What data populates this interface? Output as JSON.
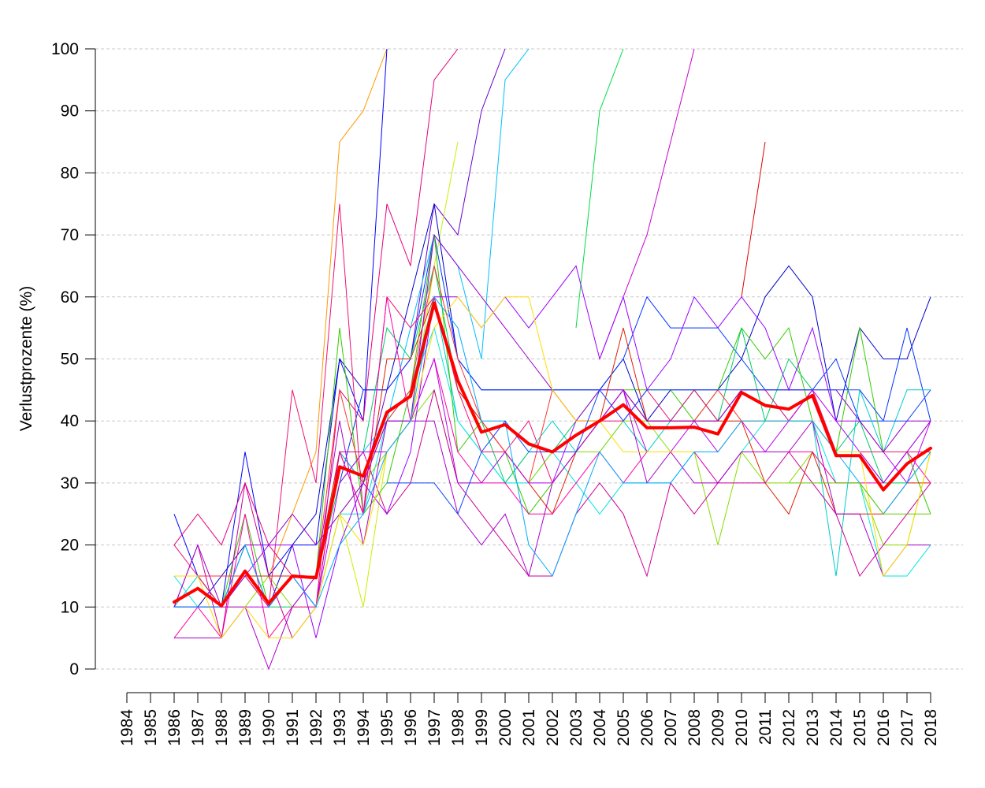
{
  "chart_data": {
    "type": "line",
    "title": "",
    "xlabel": "",
    "ylabel": "Verlustprozente (%)",
    "ylim": [
      0,
      100
    ],
    "yticks": [
      0,
      10,
      20,
      30,
      40,
      50,
      60,
      70,
      80,
      90,
      100
    ],
    "x": [
      "1984",
      "1985",
      "1986",
      "1987",
      "1988",
      "1989",
      "1990",
      "1991",
      "1992",
      "1993",
      "1994",
      "1995",
      "1996",
      "1997",
      "1998",
      "1999",
      "2000",
      "2001",
      "2002",
      "2003",
      "2004",
      "2005",
      "2006",
      "2007",
      "2008",
      "2009",
      "2010",
      "2011",
      "2012",
      "2013",
      "2014",
      "2015",
      "2016",
      "2017",
      "2018"
    ],
    "grid": "horizontal dashed",
    "mean_series": {
      "color": "#ff0000",
      "values": [
        null,
        null,
        10.8,
        13.0,
        10.2,
        15.8,
        10.6,
        15.0,
        14.7,
        32.6,
        31.1,
        41.4,
        44.0,
        59.0,
        46.5,
        38.2,
        39.4,
        36.3,
        35.0,
        37.7,
        40.0,
        42.6,
        38.9,
        38.9,
        39.0,
        37.9,
        44.6,
        42.5,
        41.9,
        44.1,
        34.4,
        34.4,
        28.9,
        33.1,
        35.6
      ]
    },
    "series": [
      {
        "color": "#ff9900",
        "values": [
          null,
          null,
          15,
          15,
          15,
          15,
          15,
          25,
          35,
          85,
          90,
          100,
          null,
          null,
          null,
          null,
          null,
          null,
          null,
          null,
          null,
          null,
          null,
          null,
          null,
          null,
          null,
          null,
          null,
          null,
          null,
          null,
          null,
          null,
          null
        ]
      },
      {
        "color": "#0000ff",
        "values": [
          null,
          null,
          25,
          15,
          10,
          35,
          15,
          20,
          20,
          50,
          40,
          100,
          null,
          null,
          null,
          null,
          null,
          null,
          null,
          null,
          null,
          null,
          null,
          null,
          null,
          null,
          null,
          null,
          null,
          null,
          null,
          null,
          null,
          null,
          null
        ]
      },
      {
        "color": "#e6007e",
        "values": [
          null,
          null,
          20,
          25,
          20,
          30,
          20,
          15,
          10,
          45,
          40,
          75,
          65,
          95,
          100,
          null,
          null,
          null,
          null,
          null,
          null,
          null,
          null,
          null,
          null,
          null,
          null,
          null,
          null,
          null,
          null,
          null,
          null,
          null,
          null
        ]
      },
      {
        "color": "#6600cc",
        "values": [
          null,
          null,
          null,
          null,
          null,
          null,
          null,
          null,
          null,
          35,
          30,
          45,
          50,
          75,
          70,
          90,
          100,
          null,
          null,
          null,
          null,
          null,
          null,
          null,
          null,
          null,
          null,
          null,
          null,
          null,
          null,
          null,
          null,
          null,
          null
        ]
      },
      {
        "color": "#00bfff",
        "values": [
          null,
          null,
          null,
          null,
          null,
          null,
          null,
          null,
          null,
          30,
          35,
          40,
          55,
          70,
          65,
          50,
          95,
          100,
          null,
          null,
          null,
          null,
          null,
          null,
          null,
          null,
          null,
          null,
          null,
          null,
          null,
          null,
          null,
          null,
          null
        ]
      },
      {
        "color": "#ccee00",
        "values": [
          null,
          null,
          null,
          null,
          null,
          null,
          null,
          null,
          null,
          25,
          10,
          35,
          40,
          65,
          85,
          null,
          null,
          null,
          null,
          null,
          null,
          null,
          null,
          null,
          null,
          null,
          null,
          null,
          null,
          null,
          null,
          null,
          null,
          null,
          null
        ]
      },
      {
        "color": "#00dd44",
        "values": [
          null,
          null,
          null,
          null,
          null,
          null,
          null,
          null,
          null,
          null,
          null,
          null,
          null,
          null,
          null,
          null,
          null,
          null,
          null,
          55,
          90,
          100,
          null,
          null,
          null,
          null,
          null,
          null,
          null,
          null,
          null,
          null,
          null,
          null,
          null
        ]
      },
      {
        "color": "#cc00cc",
        "values": [
          null,
          null,
          null,
          null,
          null,
          null,
          null,
          null,
          null,
          null,
          null,
          null,
          null,
          null,
          null,
          null,
          null,
          null,
          null,
          null,
          50,
          60,
          70,
          85,
          100,
          null,
          null,
          null,
          null,
          null,
          null,
          null,
          null,
          null,
          null
        ]
      },
      {
        "color": "#dd0000",
        "values": [
          null,
          null,
          null,
          null,
          null,
          null,
          null,
          null,
          null,
          null,
          null,
          null,
          null,
          null,
          null,
          null,
          null,
          null,
          null,
          null,
          null,
          null,
          null,
          null,
          null,
          null,
          60,
          85,
          null,
          null,
          null,
          null,
          null,
          null,
          null
        ]
      },
      {
        "color": "#0000cc",
        "values": [
          null,
          null,
          10,
          10,
          15,
          20,
          10,
          20,
          25,
          50,
          45,
          45,
          60,
          75,
          50,
          45,
          45,
          45,
          45,
          45,
          45,
          50,
          40,
          45,
          45,
          45,
          50,
          60,
          65,
          60,
          40,
          55,
          50,
          50,
          60
        ]
      },
      {
        "color": "#0033ff",
        "values": [
          null,
          null,
          null,
          null,
          null,
          null,
          null,
          null,
          null,
          30,
          45,
          45,
          50,
          70,
          50,
          45,
          45,
          45,
          45,
          45,
          45,
          50,
          60,
          55,
          55,
          55,
          50,
          45,
          45,
          45,
          50,
          40,
          40,
          55,
          40
        ]
      },
      {
        "color": "#00cccc",
        "values": [
          null,
          null,
          10,
          15,
          10,
          15,
          10,
          15,
          15,
          35,
          30,
          40,
          45,
          60,
          40,
          35,
          30,
          35,
          40,
          35,
          35,
          40,
          35,
          40,
          45,
          40,
          45,
          45,
          40,
          40,
          15,
          45,
          35,
          45,
          45
        ]
      },
      {
        "color": "#00e5e5",
        "values": [
          null,
          null,
          15,
          10,
          10,
          15,
          15,
          15,
          10,
          25,
          25,
          40,
          45,
          55,
          40,
          35,
          30,
          30,
          35,
          30,
          25,
          30,
          30,
          30,
          35,
          30,
          35,
          40,
          40,
          40,
          30,
          30,
          15,
          15,
          20
        ]
      },
      {
        "color": "#33cc00",
        "values": [
          null,
          null,
          15,
          15,
          10,
          25,
          10,
          15,
          15,
          55,
          25,
          30,
          45,
          70,
          35,
          40,
          35,
          25,
          30,
          35,
          40,
          45,
          45,
          45,
          40,
          45,
          55,
          50,
          55,
          40,
          35,
          55,
          35,
          35,
          25
        ]
      },
      {
        "color": "#00cc66",
        "values": [
          null,
          null,
          10,
          10,
          10,
          20,
          10,
          10,
          15,
          30,
          35,
          55,
          50,
          65,
          45,
          40,
          30,
          35,
          35,
          40,
          45,
          45,
          40,
          40,
          45,
          40,
          55,
          40,
          50,
          45,
          35,
          40,
          30,
          30,
          35
        ]
      },
      {
        "color": "#88dd00",
        "values": [
          null,
          null,
          10,
          10,
          10,
          10,
          15,
          10,
          10,
          25,
          30,
          35,
          40,
          45,
          30,
          30,
          35,
          30,
          35,
          35,
          35,
          40,
          40,
          35,
          35,
          20,
          35,
          30,
          30,
          35,
          30,
          30,
          20,
          20,
          35
        ]
      },
      {
        "color": "#dd2200",
        "values": [
          null,
          null,
          15,
          15,
          15,
          15,
          15,
          15,
          15,
          35,
          25,
          50,
          50,
          60,
          45,
          40,
          35,
          30,
          25,
          35,
          40,
          55,
          40,
          40,
          40,
          40,
          40,
          30,
          25,
          35,
          25,
          25,
          25,
          30,
          30
        ]
      },
      {
        "color": "#ff3333",
        "values": [
          null,
          null,
          15,
          15,
          15,
          15,
          10,
          15,
          15,
          45,
          30,
          40,
          45,
          65,
          50,
          40,
          35,
          30,
          45,
          40,
          40,
          45,
          40,
          40,
          40,
          45,
          40,
          40,
          40,
          45,
          35,
          35,
          30,
          35,
          40
        ]
      },
      {
        "color": "#ee1177",
        "values": [
          null,
          null,
          20,
          15,
          10,
          15,
          10,
          45,
          30,
          75,
          25,
          60,
          55,
          60,
          45,
          35,
          35,
          40,
          30,
          35,
          40,
          40,
          45,
          40,
          45,
          40,
          45,
          45,
          40,
          45,
          35,
          35,
          35,
          35,
          35
        ]
      },
      {
        "color": "#ff00aa",
        "values": [
          null,
          null,
          5,
          10,
          5,
          25,
          5,
          10,
          10,
          35,
          25,
          60,
          40,
          50,
          35,
          30,
          30,
          25,
          25,
          30,
          35,
          30,
          35,
          35,
          35,
          30,
          35,
          35,
          35,
          35,
          30,
          30,
          30,
          35,
          30
        ]
      },
      {
        "color": "#cc0099",
        "values": [
          null,
          null,
          10,
          20,
          5,
          30,
          15,
          5,
          10,
          35,
          35,
          25,
          30,
          45,
          30,
          25,
          20,
          15,
          15,
          25,
          30,
          25,
          15,
          30,
          25,
          30,
          30,
          30,
          35,
          30,
          25,
          15,
          20,
          25,
          30
        ]
      },
      {
        "color": "#aa00cc",
        "values": [
          null,
          null,
          5,
          5,
          5,
          10,
          0,
          10,
          15,
          40,
          20,
          40,
          40,
          40,
          25,
          20,
          25,
          15,
          30,
          35,
          40,
          45,
          30,
          35,
          30,
          30,
          35,
          35,
          35,
          40,
          25,
          25,
          15,
          20,
          20
        ]
      },
      {
        "color": "#9900ff",
        "values": [
          null,
          null,
          10,
          10,
          10,
          15,
          20,
          20,
          5,
          20,
          30,
          25,
          35,
          60,
          60,
          55,
          60,
          55,
          60,
          65,
          50,
          60,
          45,
          50,
          60,
          55,
          60,
          55,
          45,
          55,
          40,
          35,
          30,
          35,
          40
        ]
      },
      {
        "color": "#bb00ee",
        "values": [
          null,
          null,
          10,
          10,
          10,
          10,
          10,
          15,
          10,
          30,
          35,
          35,
          40,
          50,
          30,
          30,
          35,
          30,
          30,
          40,
          40,
          45,
          35,
          35,
          40,
          35,
          40,
          35,
          40,
          45,
          40,
          40,
          35,
          30,
          40
        ]
      },
      {
        "color": "#9900cc",
        "values": [
          null,
          null,
          10,
          20,
          10,
          20,
          20,
          25,
          20,
          25,
          30,
          40,
          40,
          70,
          65,
          60,
          55,
          50,
          45,
          40,
          45,
          45,
          40,
          40,
          40,
          40,
          45,
          45,
          45,
          45,
          45,
          40,
          35,
          40,
          40
        ]
      },
      {
        "color": "#ffdd00",
        "values": [
          null,
          null,
          15,
          15,
          5,
          10,
          5,
          5,
          10,
          25,
          20,
          35,
          40,
          55,
          60,
          55,
          60,
          60,
          45,
          40,
          40,
          35,
          35,
          35,
          35,
          35,
          40,
          40,
          40,
          40,
          35,
          35,
          15,
          20,
          35
        ]
      },
      {
        "color": "#00aaff",
        "values": [
          null,
          null,
          10,
          10,
          10,
          20,
          10,
          15,
          10,
          20,
          25,
          35,
          40,
          60,
          55,
          40,
          40,
          20,
          15,
          25,
          35,
          30,
          30,
          30,
          35,
          35,
          40,
          40,
          40,
          40,
          35,
          30,
          25,
          30,
          35
        ]
      },
      {
        "color": "#1144ff",
        "values": [
          null,
          null,
          null,
          null,
          null,
          null,
          null,
          null,
          null,
          null,
          null,
          30,
          30,
          30,
          25,
          35,
          40,
          35,
          35,
          35,
          45,
          40,
          45,
          45,
          45,
          45,
          45,
          45,
          45,
          45,
          45,
          45,
          40,
          40,
          45
        ]
      },
      {
        "color": "#66cc00",
        "values": [
          null,
          null,
          null,
          null,
          null,
          null,
          null,
          null,
          null,
          null,
          null,
          null,
          null,
          null,
          null,
          null,
          null,
          null,
          null,
          null,
          null,
          null,
          null,
          null,
          null,
          null,
          null,
          null,
          30,
          30,
          30,
          30,
          25,
          25,
          25
        ]
      }
    ]
  }
}
